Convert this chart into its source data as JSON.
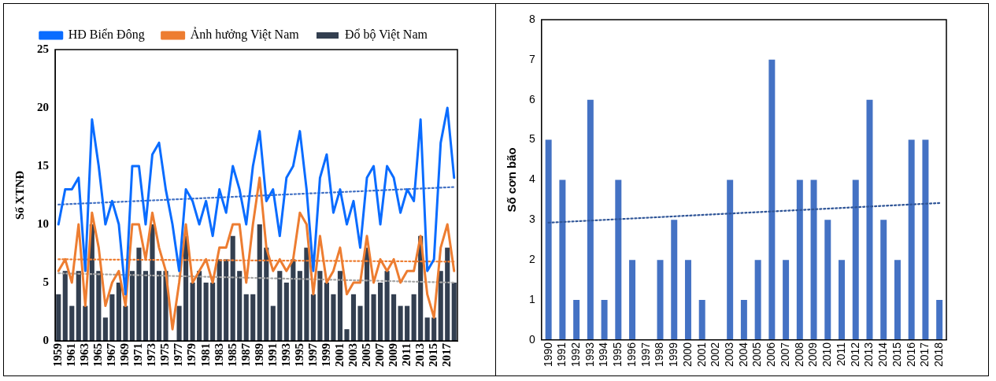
{
  "chart_data": [
    {
      "type": "bar",
      "ylabel": "Số XTNĐ",
      "legend": "top",
      "grid": false,
      "marker": "none",
      "x": [
        1959,
        1960,
        1961,
        1962,
        1963,
        1964,
        1965,
        1966,
        1967,
        1968,
        1969,
        1970,
        1971,
        1972,
        1973,
        1974,
        1975,
        1976,
        1977,
        1978,
        1979,
        1980,
        1981,
        1982,
        1983,
        1984,
        1985,
        1986,
        1987,
        1988,
        1989,
        1990,
        1991,
        1992,
        1993,
        1994,
        1995,
        1996,
        1997,
        1998,
        1999,
        2000,
        2001,
        2002,
        2003,
        2004,
        2005,
        2006,
        2007,
        2008,
        2009,
        2010,
        2011,
        2012,
        2013,
        2014,
        2015,
        2016,
        2017,
        2018
      ],
      "xlim": [
        1958.5,
        2018.5
      ],
      "xticks": [
        1959,
        1961,
        1963,
        1965,
        1967,
        1969,
        1971,
        1973,
        1975,
        1977,
        1979,
        1981,
        1983,
        1985,
        1987,
        1989,
        1991,
        1993,
        1995,
        1997,
        1999,
        2001,
        2003,
        2005,
        2007,
        2009,
        2011,
        2013,
        2015,
        2017
      ],
      "ylim": [
        0,
        25
      ],
      "yticks": [
        0,
        5,
        10,
        15,
        20,
        25
      ],
      "series": [
        {
          "name": "Đổ bộ Việt Nam",
          "color": "#333f50",
          "values": [
            4,
            6,
            3,
            6,
            3,
            10,
            6,
            2,
            4,
            5,
            3,
            6,
            8,
            6,
            10,
            6,
            6,
            0,
            3,
            9,
            5,
            6,
            5,
            5,
            7,
            7,
            9,
            6,
            4,
            4,
            10,
            8,
            3,
            6,
            5,
            7,
            6,
            8,
            4,
            6,
            5,
            4,
            6,
            1,
            4,
            3,
            8,
            4,
            5,
            6,
            4,
            3,
            3,
            4,
            9,
            2,
            2,
            6,
            8,
            5
          ]
        },
        {
          "name": "HĐ Biển Đông",
          "type": "line",
          "color": "#0a6cff",
          "line_style": "solid",
          "values": [
            10,
            13,
            13,
            14,
            6,
            19,
            15,
            10,
            12,
            10,
            4,
            15,
            15,
            10,
            16,
            17,
            13,
            10,
            6,
            13,
            12,
            10,
            12,
            9,
            13,
            11,
            15,
            13,
            10,
            15,
            18,
            12,
            13,
            9,
            14,
            15,
            18,
            13,
            6,
            14,
            16,
            11,
            13,
            10,
            12,
            8,
            14,
            15,
            10,
            15,
            14,
            11,
            13,
            12,
            19,
            6,
            7,
            17,
            20,
            14
          ]
        },
        {
          "name": "Ảnh hưởng Việt Nam",
          "type": "line",
          "color": "#ed7d31",
          "line_style": "solid",
          "values": [
            6,
            7,
            5,
            10,
            3,
            11,
            8,
            3,
            5,
            6,
            3,
            10,
            10,
            7,
            11,
            8,
            6,
            1,
            5,
            10,
            5,
            6,
            7,
            5,
            8,
            8,
            10,
            10,
            5,
            10,
            14,
            8,
            6,
            7,
            6,
            7,
            11,
            10,
            4,
            9,
            5,
            6,
            8,
            4,
            5,
            5,
            9,
            5,
            7,
            6,
            7,
            5,
            6,
            6,
            9,
            4,
            2,
            8,
            10,
            6
          ]
        },
        {
          "type": "line",
          "color": "#a5a5a5",
          "line_style": "dotted",
          "x": [
            1959,
            2018
          ],
          "values": [
            5.8,
            5.0
          ]
        },
        {
          "type": "line",
          "color": "#4472c4",
          "line_style": "dotted",
          "x": [
            1959,
            2018
          ],
          "values": [
            11.7,
            13.2
          ]
        },
        {
          "type": "line",
          "color": "#ed7d31",
          "line_style": "dotted",
          "x": [
            1959,
            2018
          ],
          "values": [
            7.0,
            6.8
          ]
        }
      ]
    },
    {
      "type": "bar",
      "ylabel": "Số cơn bão",
      "legend": false,
      "grid": false,
      "marker": "none",
      "x": [
        1990,
        1991,
        1992,
        1993,
        1994,
        1995,
        1996,
        1997,
        1998,
        1999,
        2000,
        2001,
        2002,
        2003,
        2004,
        2005,
        2006,
        2007,
        2008,
        2009,
        2010,
        2011,
        2012,
        2013,
        2014,
        2015,
        2016,
        2017,
        2018
      ],
      "xlim": [
        1989.5,
        2018.5
      ],
      "xticks": [
        1990,
        1991,
        1992,
        1993,
        1994,
        1995,
        1996,
        1997,
        1998,
        1999,
        2000,
        2001,
        2002,
        2003,
        2004,
        2005,
        2006,
        2007,
        2008,
        2009,
        2010,
        2011,
        2012,
        2013,
        2014,
        2015,
        2016,
        2017,
        2018
      ],
      "ylim": [
        0,
        8
      ],
      "yticks": [
        0,
        1,
        2,
        3,
        4,
        5,
        6,
        7,
        8
      ],
      "series": [
        {
          "color": "#4472c4",
          "values": [
            5,
            4,
            1,
            6,
            1,
            4,
            2,
            0,
            2,
            3,
            2,
            1,
            0,
            4,
            1,
            2,
            7,
            2,
            4,
            4,
            3,
            2,
            4,
            6,
            3,
            2,
            5,
            5,
            1
          ]
        },
        {
          "type": "line",
          "color": "#2f5597",
          "line_style": "dotted",
          "x": [
            1990,
            2018
          ],
          "values": [
            2.93,
            3.42
          ]
        }
      ]
    }
  ]
}
